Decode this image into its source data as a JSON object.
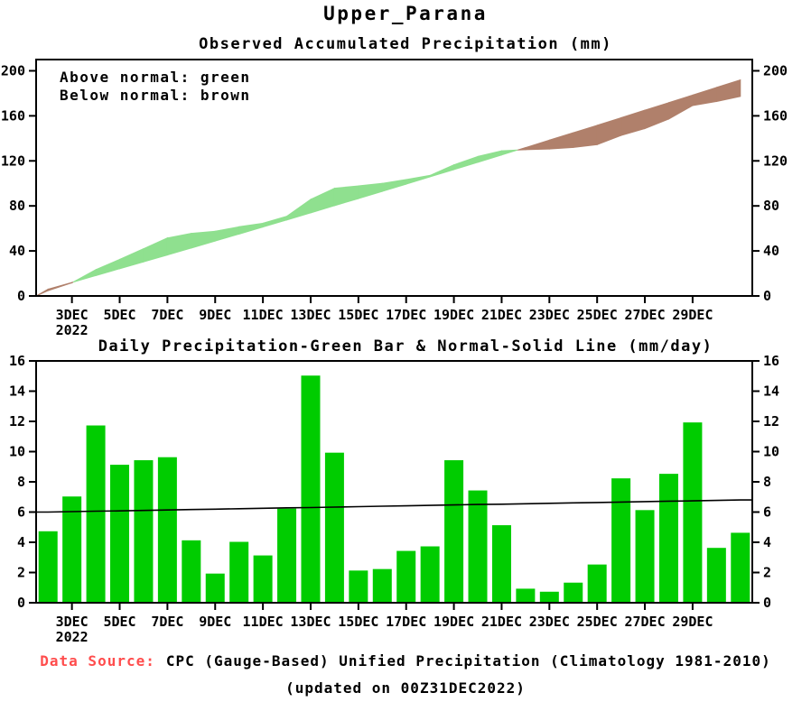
{
  "title": "Upper_Parana",
  "colors": {
    "bar_green": "#00CC00",
    "band_green": "#8FE08F",
    "band_brown": "#B0806B",
    "normal_line": "#000000",
    "source_label_red": "#FF4D4D",
    "axis_black": "#000000"
  },
  "footer": {
    "label": "Data Source:",
    "text": "CPC (Gauge-Based) Unified Precipitation (Climatology 1981-2010)",
    "updated": "(updated on 00Z31DEC2022)"
  },
  "chart_data": [
    {
      "type": "area",
      "title": "Observed Accumulated Precipitation (mm)",
      "legend": [
        "Above normal: green",
        "Below normal: brown"
      ],
      "x_days": [
        2,
        3,
        4,
        5,
        6,
        7,
        8,
        9,
        10,
        11,
        12,
        13,
        14,
        15,
        16,
        17,
        18,
        19,
        20,
        21,
        22,
        23,
        24,
        25,
        26,
        27,
        28,
        29,
        30,
        31
      ],
      "xtick_days": [
        3,
        5,
        7,
        9,
        11,
        13,
        15,
        17,
        19,
        21,
        23,
        25,
        27,
        29
      ],
      "xtick_labels": [
        "3DEC",
        "5DEC",
        "7DEC",
        "9DEC",
        "11DEC",
        "13DEC",
        "15DEC",
        "17DEC",
        "19DEC",
        "21DEC",
        "23DEC",
        "25DEC",
        "27DEC",
        "29DEC"
      ],
      "x_year_label": "2022",
      "ylim": [
        0,
        210
      ],
      "yticks": [
        0,
        40,
        80,
        120,
        160,
        200
      ],
      "series": [
        {
          "name": "Observed accumulated precipitation (mm)",
          "values": [
            4.7,
            11.7,
            23.4,
            32.5,
            41.9,
            51.5,
            55.6,
            57.5,
            61.5,
            64.6,
            70.8,
            85.8,
            95.7,
            97.8,
            100.0,
            103.4,
            107.1,
            116.5,
            123.9,
            129.0,
            129.9,
            130.6,
            131.9,
            134.4,
            142.6,
            148.7,
            157.2,
            169.1,
            172.7,
            177.3
          ]
        },
        {
          "name": "Normal accumulated precipitation (mm)",
          "values": [
            6.0,
            12.0,
            18.1,
            24.2,
            30.3,
            36.4,
            42.6,
            48.8,
            55.0,
            61.2,
            67.5,
            73.8,
            80.2,
            86.5,
            92.9,
            99.3,
            105.8,
            112.2,
            118.7,
            125.3,
            131.8,
            138.4,
            145.0,
            151.6,
            158.3,
            165.0,
            171.7,
            178.4,
            185.2,
            192.0
          ]
        }
      ]
    },
    {
      "type": "bar",
      "title": "Daily Precipitation-Green Bar & Normal-Solid Line (mm/day)",
      "x_days": [
        2,
        3,
        4,
        5,
        6,
        7,
        8,
        9,
        10,
        11,
        12,
        13,
        14,
        15,
        16,
        17,
        18,
        19,
        20,
        21,
        22,
        23,
        24,
        25,
        26,
        27,
        28,
        29,
        30,
        31
      ],
      "xtick_days": [
        3,
        5,
        7,
        9,
        11,
        13,
        15,
        17,
        19,
        21,
        23,
        25,
        27,
        29
      ],
      "xtick_labels": [
        "3DEC",
        "5DEC",
        "7DEC",
        "9DEC",
        "11DEC",
        "13DEC",
        "15DEC",
        "17DEC",
        "19DEC",
        "21DEC",
        "23DEC",
        "25DEC",
        "27DEC",
        "29DEC"
      ],
      "x_year_label": "2022",
      "ylim": [
        0,
        16
      ],
      "yticks": [
        0,
        2,
        4,
        6,
        8,
        10,
        12,
        14,
        16
      ],
      "series": [
        {
          "name": "Daily precipitation (mm/day)",
          "values": [
            4.7,
            7.0,
            11.7,
            9.1,
            9.4,
            9.6,
            4.1,
            1.9,
            4.0,
            3.1,
            6.2,
            15.0,
            9.9,
            2.1,
            2.2,
            3.4,
            3.7,
            9.4,
            7.4,
            5.1,
            0.9,
            0.7,
            1.3,
            2.5,
            8.2,
            6.1,
            8.5,
            11.9,
            3.6,
            4.6
          ]
        },
        {
          "name": "Normal (mm/day)",
          "values": [
            6.0,
            6.03,
            6.06,
            6.08,
            6.11,
            6.14,
            6.17,
            6.19,
            6.22,
            6.25,
            6.28,
            6.3,
            6.33,
            6.36,
            6.39,
            6.41,
            6.44,
            6.47,
            6.5,
            6.52,
            6.55,
            6.58,
            6.61,
            6.63,
            6.66,
            6.69,
            6.72,
            6.74,
            6.77,
            6.8
          ]
        }
      ]
    }
  ]
}
